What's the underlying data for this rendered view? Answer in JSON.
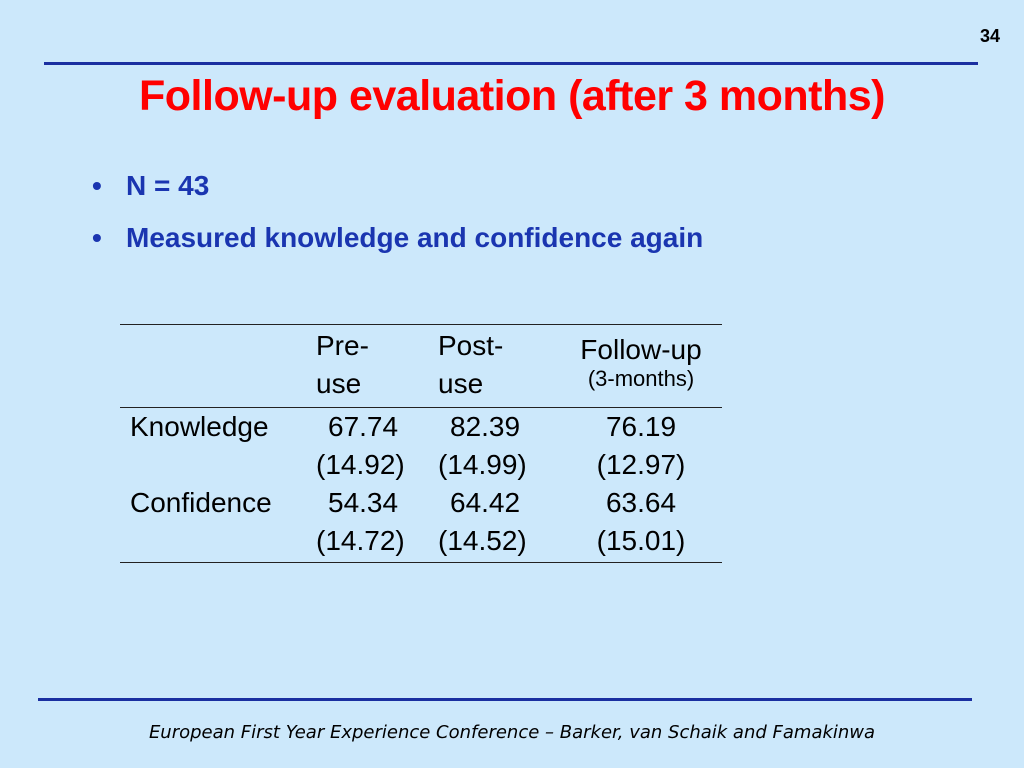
{
  "slide_number": "34",
  "title": "Follow-up evaluation (after 3 months)",
  "bullets": [
    "N = 43",
    "Measured knowledge and confidence again"
  ],
  "table": {
    "headers": {
      "pre": "Pre-\nuse",
      "post": "Post-\nuse",
      "follow_main": "Follow-up",
      "follow_sub": "(3-months)"
    },
    "rows": [
      {
        "label": "Knowledge",
        "pre": "67.74",
        "pre_sd": "(14.92)",
        "post": "82.39",
        "post_sd": "(14.99)",
        "follow": "76.19",
        "follow_sd": "(12.97)"
      },
      {
        "label": "Confidence",
        "pre": "54.34",
        "pre_sd": "(14.72)",
        "post": "64.42",
        "post_sd": "(14.52)",
        "follow": "63.64",
        "follow_sd": "(15.01)"
      }
    ]
  },
  "footer": "European First Year Experience Conference – Barker, van Schaik and Famakinwa",
  "colors": {
    "background": "#cce8fb",
    "title": "#ff0000",
    "bullet_text": "#1a35b0",
    "rule": "#1a2fa0"
  }
}
